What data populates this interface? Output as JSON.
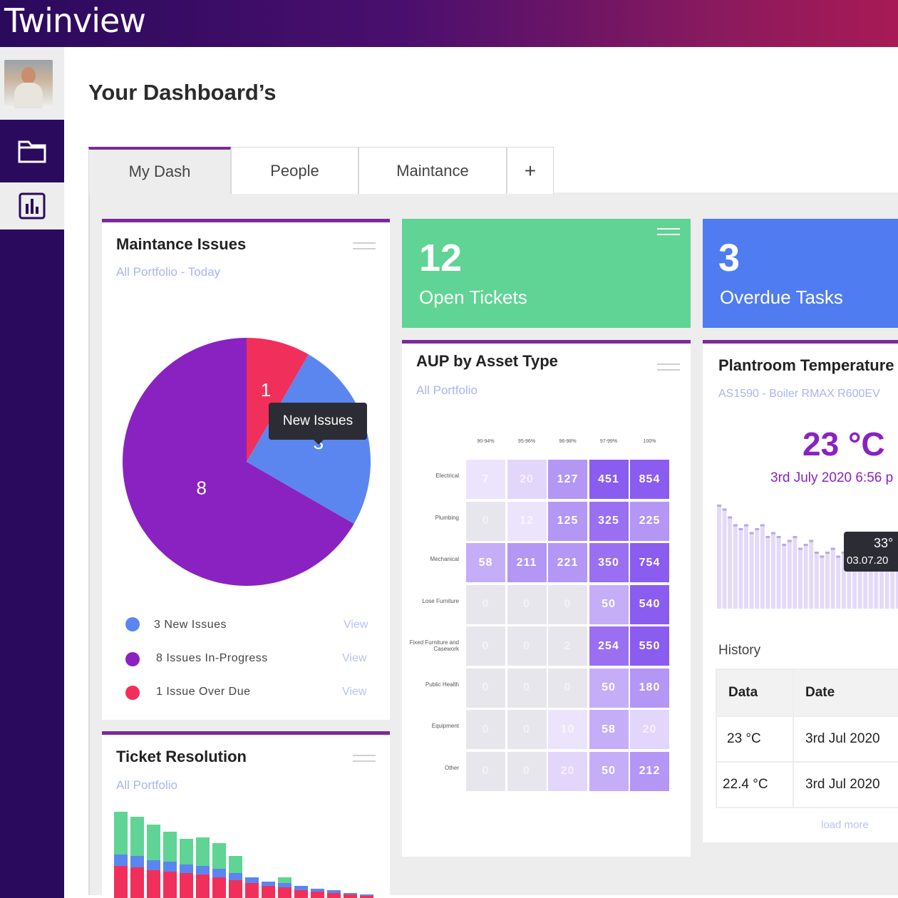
{
  "app": {
    "brand": "Twinview"
  },
  "page": {
    "title": "Your Dashboard’s"
  },
  "tabs": [
    {
      "label": "My Dash",
      "active": true
    },
    {
      "label": "People",
      "active": false
    },
    {
      "label": "Maintance",
      "active": false
    },
    {
      "label": "+",
      "active": false
    }
  ],
  "maintenance_card": {
    "title": "Maintance Issues",
    "subtitle": "All Portfolio - Today",
    "tooltip": "New Issues",
    "legend": [
      {
        "text": "3 New Issues",
        "color": "#5b86f0",
        "action": "View"
      },
      {
        "text": "8 Issues In-Progress",
        "color": "#8a22c2",
        "action": "View"
      },
      {
        "text": "1 Issue Over Due",
        "color": "#f0305a",
        "action": "View"
      }
    ]
  },
  "kpis": [
    {
      "value": "12",
      "label": "Open Tickets",
      "color": "#5fd494"
    },
    {
      "value": "3",
      "label": "Overdue Tasks",
      "color": "#4f7cf0"
    }
  ],
  "aup_card": {
    "title": "AUP by Asset Type",
    "subtitle": "All Portfolio"
  },
  "temperature_card": {
    "title": "Plantroom Temperature",
    "subtitle": "AS1590 - Boiler RMAX R600EV",
    "reading": "23 °C",
    "reading_time": "3rd July 2020 6:56 p",
    "tooltip_value": "33°",
    "tooltip_date": "03.07.20",
    "history_label": "History",
    "history_columns": [
      "Data",
      "Date"
    ],
    "history_rows": [
      {
        "data": "23 °C",
        "date": "3rd Jul 2020"
      },
      {
        "data": "22.4 °C",
        "date": "3rd Jul 2020"
      }
    ],
    "load_more": "load more"
  },
  "ticket_card": {
    "title": "Ticket Resolution",
    "subtitle": "All Portfolio"
  },
  "chart_data": [
    {
      "type": "pie",
      "labels": [
        "New Issues",
        "Issues In-Progress",
        "Issue Over Due"
      ],
      "values": [
        3,
        8,
        1
      ],
      "colors": [
        "#5b86f0",
        "#8a22c2",
        "#f0305a"
      ]
    },
    {
      "type": "heatmap",
      "title": "AUP by Asset Type",
      "columns": [
        "90-94%",
        "95-96%",
        "96-98%",
        "97-99%",
        "100%"
      ],
      "rows": [
        "Electrical",
        "Plumbing",
        "Mechanical",
        "Lose Furniture",
        "Fixed Furniture and Casework",
        "Public Health",
        "Equipment",
        "Other"
      ],
      "values": [
        [
          7,
          20,
          127,
          451,
          854
        ],
        [
          0,
          12,
          125,
          325,
          225
        ],
        [
          58,
          211,
          221,
          350,
          754
        ],
        [
          0,
          0,
          0,
          50,
          540
        ],
        [
          0,
          0,
          2,
          254,
          550
        ],
        [
          0,
          0,
          0,
          50,
          180
        ],
        [
          0,
          0,
          10,
          58,
          20
        ],
        [
          0,
          0,
          20,
          50,
          212
        ]
      ]
    },
    {
      "type": "bar",
      "title": "Plantroom Temperature",
      "values": [
        36,
        35,
        33,
        31,
        30,
        31,
        29,
        30,
        31,
        28,
        29,
        28,
        26,
        27,
        28,
        25,
        26,
        27,
        24,
        23,
        24,
        25,
        23,
        24,
        25,
        22,
        23,
        24,
        22,
        21,
        22,
        23,
        21,
        20,
        21,
        22
      ]
    },
    {
      "type": "bar",
      "title": "Ticket Resolution",
      "stacked": true,
      "series": [
        {
          "name": "",
          "color": "#f0305a",
          "values": [
            46,
            44,
            40,
            38,
            36,
            34,
            30,
            26,
            22,
            18,
            16,
            12,
            10,
            8,
            6,
            4
          ]
        },
        {
          "name": "",
          "color": "#5b86f0",
          "values": [
            16,
            16,
            14,
            14,
            12,
            12,
            12,
            10,
            8,
            6,
            6,
            6,
            4,
            4,
            2,
            2
          ]
        },
        {
          "name": "",
          "color": "#5fd494",
          "values": [
            60,
            55,
            50,
            42,
            36,
            40,
            36,
            24,
            0,
            0,
            8,
            0,
            0,
            0,
            0,
            0
          ]
        }
      ]
    }
  ]
}
